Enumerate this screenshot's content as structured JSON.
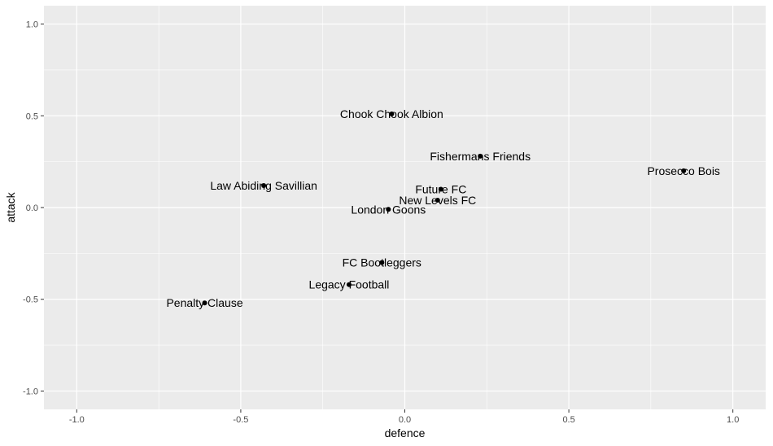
{
  "chart_data": {
    "type": "scatter",
    "title": "",
    "xlabel": "defence",
    "ylabel": "attack",
    "xlim": [
      -1.1,
      1.1
    ],
    "ylim": [
      -1.1,
      1.1
    ],
    "x_ticks": [
      -1.0,
      -0.5,
      0.0,
      0.5,
      1.0
    ],
    "x_tick_labels": [
      "-1.0",
      "-0.5",
      "0.0",
      "0.5",
      "1.0"
    ],
    "y_ticks": [
      -1.0,
      -0.5,
      0.0,
      0.5,
      1.0
    ],
    "y_tick_labels": [
      "-1.0",
      "-0.5",
      "0.0",
      "0.5",
      "1.0"
    ],
    "grid": true,
    "points": [
      {
        "label": "Chook Chook Albion",
        "x": -0.04,
        "y": 0.51
      },
      {
        "label": "Fishermans Friends",
        "x": 0.23,
        "y": 0.28
      },
      {
        "label": "Prosecco Bois",
        "x": 0.85,
        "y": 0.2
      },
      {
        "label": "Law Abiding Savillian",
        "x": -0.43,
        "y": 0.12
      },
      {
        "label": "Future FC",
        "x": 0.11,
        "y": 0.1
      },
      {
        "label": "New Levels FC",
        "x": 0.1,
        "y": 0.04
      },
      {
        "label": "London Goons",
        "x": -0.05,
        "y": -0.01
      },
      {
        "label": "FC Bootleggers",
        "x": -0.07,
        "y": -0.3
      },
      {
        "label": "Legacy Football",
        "x": -0.17,
        "y": -0.42
      },
      {
        "label": "Penalty Clause",
        "x": -0.61,
        "y": -0.52
      }
    ],
    "colors": {
      "panel": "#ebebeb",
      "grid_major": "#ffffff",
      "point": "#000000",
      "text": "#000000",
      "tick_text": "#4d4d4d",
      "tick": "#333333"
    }
  }
}
